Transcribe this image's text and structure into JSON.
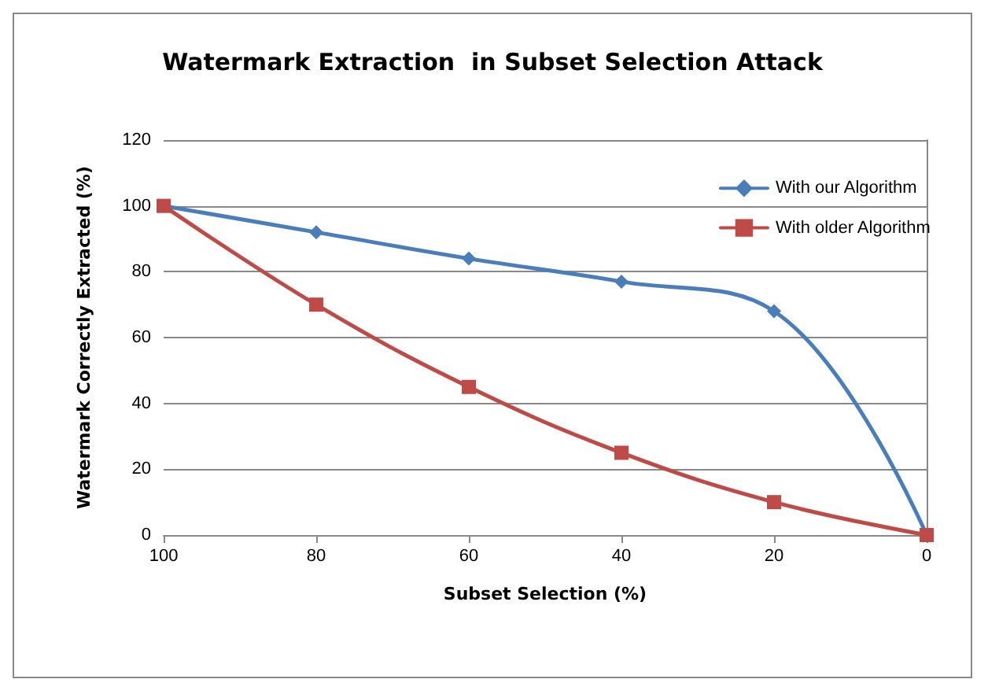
{
  "chart_data": {
    "type": "line",
    "title": "Watermark Extraction  in Subset Selection Attack",
    "xlabel": "Subset Selection (%)",
    "ylabel": "Watermark Correctly Extracted (%)",
    "x": [
      100,
      80,
      60,
      40,
      20,
      0
    ],
    "series": [
      {
        "name": "With our Algorithm",
        "color": "#4a7ebb",
        "marker": "diamond",
        "values": [
          100,
          92,
          84,
          77,
          68,
          0
        ]
      },
      {
        "name": "With older Algorithm",
        "color": "#be4b48",
        "marker": "square",
        "values": [
          100,
          70,
          45,
          25,
          10,
          0
        ]
      }
    ],
    "xlim": [
      100,
      0
    ],
    "xticks": [
      100,
      80,
      60,
      40,
      20,
      0
    ],
    "ylim": [
      0,
      120
    ],
    "yticks": [
      0,
      20,
      40,
      60,
      80,
      100,
      120
    ],
    "grid": "y",
    "legend": "top right",
    "line_style": "solid"
  }
}
